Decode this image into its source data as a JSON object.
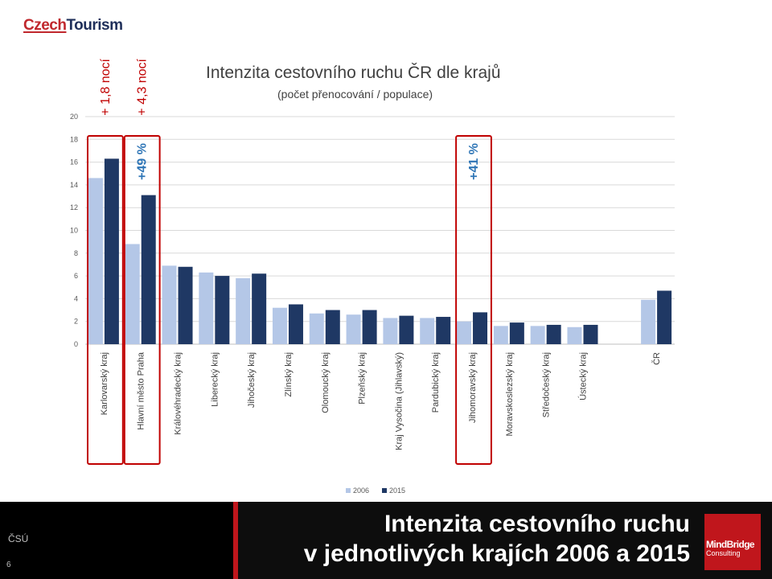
{
  "brand": {
    "czech": "Czech",
    "tourism": "Tourism"
  },
  "footer": {
    "source": "ČSÚ",
    "page_number": "6",
    "title_line1": "Intenzita cestovního ruchu",
    "title_line2": "v jednotlivých krajích 2006 a 2015",
    "logo_name": "MindBridge",
    "logo_sub": "Consulting"
  },
  "colors": {
    "series_2006": "#b4c7e7",
    "series_2015": "#1f3864",
    "highlight_box": "#c00000",
    "growth_label": "#2e75b6",
    "nights_label": "#c00000"
  },
  "chart_data": {
    "type": "bar",
    "title": "Intenzita cestovního ruchu ČR dle krajů",
    "subtitle": "(počet přenocování / populace)",
    "ylim": [
      0,
      20
    ],
    "yticks": [
      0,
      2,
      4,
      6,
      8,
      10,
      12,
      14,
      16,
      18,
      20
    ],
    "grid": true,
    "legend": "bottom",
    "categories": [
      "Karlovarský kraj",
      "Hlavní město Praha",
      "Královéhradecký kraj",
      "Liberecký kraj",
      "Jihočeský kraj",
      "Zlínský kraj",
      "Olomoucký kraj",
      "Plzeňský kraj",
      "Kraj Vysočina (Jihlavský)",
      "Pardubický kraj",
      "Jihomoravský kraj",
      "Moravskoslezský kraj",
      "Středočeský kraj",
      "Ústecký kraj",
      "",
      "ČR"
    ],
    "series": [
      {
        "name": "2006",
        "values": [
          14.6,
          8.8,
          6.9,
          6.3,
          5.8,
          3.2,
          2.7,
          2.6,
          2.3,
          2.3,
          2.0,
          1.6,
          1.6,
          1.5,
          null,
          3.9
        ]
      },
      {
        "name": "2015",
        "values": [
          16.3,
          13.1,
          6.8,
          6.0,
          6.2,
          3.5,
          3.0,
          3.0,
          2.5,
          2.4,
          2.8,
          1.9,
          1.7,
          1.7,
          null,
          4.7
        ]
      }
    ],
    "annotations": [
      {
        "category": "Karlovarský kraj",
        "nights_text": "+ 1,8 nocí"
      },
      {
        "category": "Hlavní město Praha",
        "nights_text": "+ 4,3 nocí",
        "growth_text": "+49 %"
      },
      {
        "category": "Jihomoravský kraj",
        "growth_text": "+41 %"
      }
    ]
  }
}
